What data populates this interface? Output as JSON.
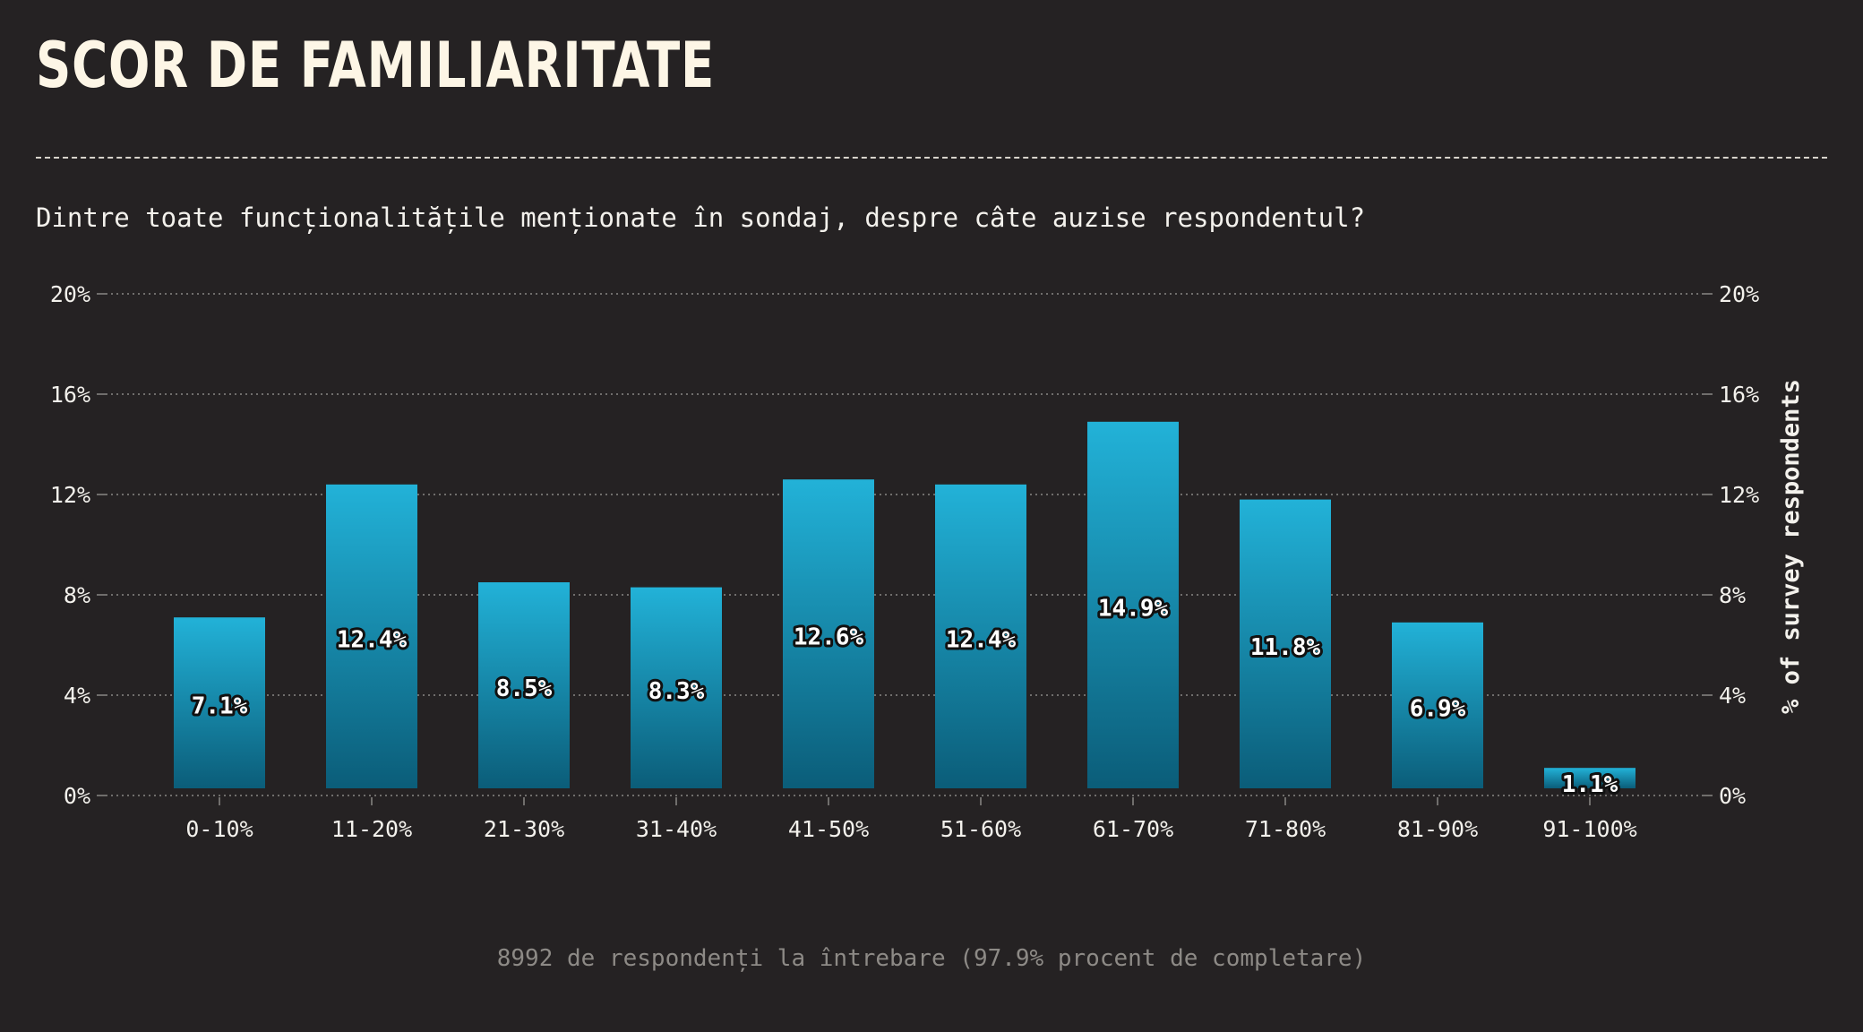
{
  "header": {
    "title": "SCOR DE FAMILIARITATE",
    "subtitle": "Dintre toate funcționalitățile menționate în sondaj, despre câte auzise respondentul?"
  },
  "footer": {
    "note": "8992 de respondenți la întrebare (97.9% procent de completare)"
  },
  "colors": {
    "background": "#252223",
    "bar_top": "#22b2d8",
    "bar_bottom": "#0b5d79",
    "title": "#fdf6e6",
    "text": "#f3f1ec",
    "muted": "#8d8a86",
    "grid": "#8a8784"
  },
  "chart_data": {
    "type": "bar",
    "categories": [
      "0-10%",
      "11-20%",
      "21-30%",
      "31-40%",
      "41-50%",
      "51-60%",
      "61-70%",
      "71-80%",
      "81-90%",
      "91-100%"
    ],
    "values": [
      7.1,
      12.4,
      8.5,
      8.3,
      12.6,
      12.4,
      14.9,
      11.8,
      6.9,
      1.1
    ],
    "value_labels": [
      "7.1%",
      "12.4%",
      "8.5%",
      "8.3%",
      "12.6%",
      "12.4%",
      "14.9%",
      "11.8%",
      "6.9%",
      "1.1%"
    ],
    "ylim": [
      0,
      20
    ],
    "yticks": [
      0,
      4,
      8,
      12,
      16,
      20
    ],
    "ytick_labels": [
      "0%",
      "4%",
      "8%",
      "12%",
      "16%",
      "20%"
    ],
    "ylabel": "% of survey respondents",
    "xlabel": "",
    "grid": true,
    "axes": "both-sides"
  }
}
